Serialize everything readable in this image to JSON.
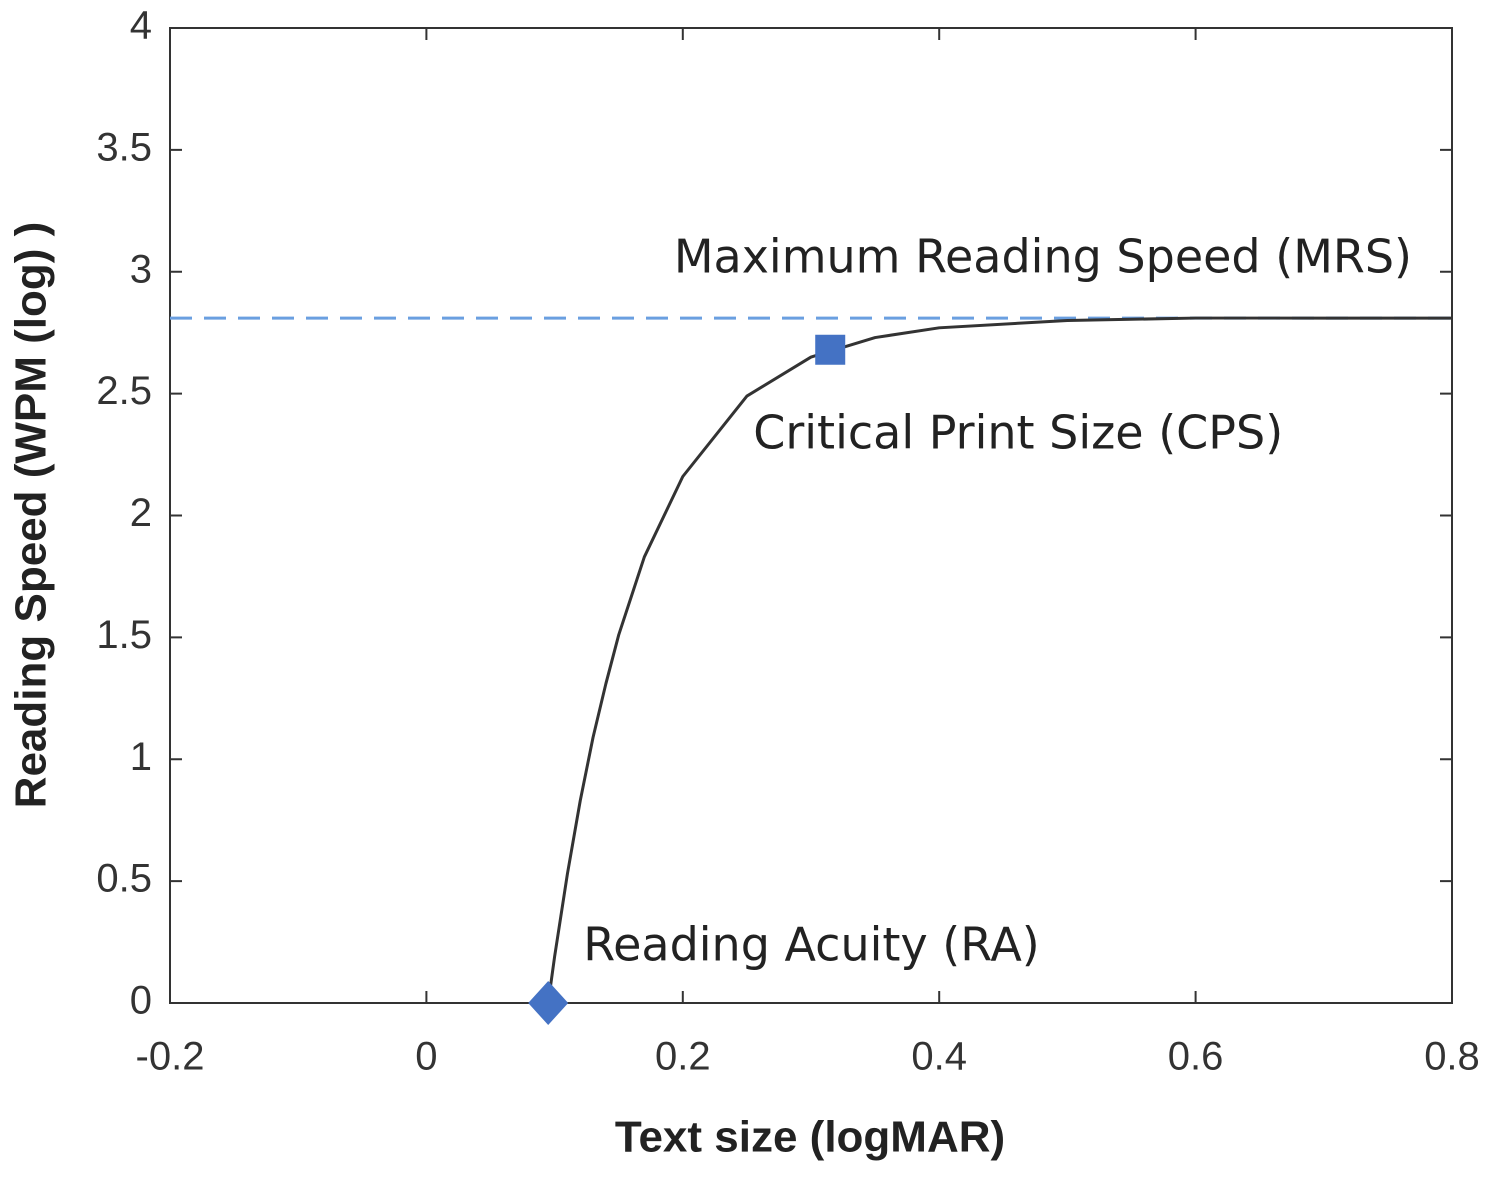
{
  "chart_data": {
    "type": "line",
    "x_label": "Text size (logMAR)",
    "y_label": "Reading Speed (WPM (log) )",
    "xlim": [
      -0.2,
      0.8
    ],
    "xticks": [
      -0.2,
      0,
      0.2,
      0.4,
      0.6,
      0.8
    ],
    "ylim": [
      0,
      4
    ],
    "yticks": [
      0,
      0.5,
      1,
      1.5,
      2,
      2.5,
      3,
      3.5,
      4
    ],
    "grid": false,
    "series": [
      {
        "color": "#333333",
        "x": [
          0.095,
          0.1,
          0.11,
          0.12,
          0.13,
          0.14,
          0.15,
          0.17,
          0.2,
          0.25,
          0.3,
          0.35,
          0.4,
          0.5,
          0.6,
          0.7,
          0.8
        ],
        "values": [
          0,
          0.19,
          0.53,
          0.83,
          1.09,
          1.31,
          1.51,
          1.83,
          2.16,
          2.49,
          2.65,
          2.73,
          2.77,
          2.8,
          2.81,
          2.81,
          2.81
        ]
      }
    ],
    "points": [
      {
        "label": "Reading Acuity (RA)",
        "x": 0.095,
        "y": 0,
        "marker": "diamond",
        "color": "#4472c4"
      },
      {
        "label": "Critical Print Size (CPS)",
        "x": 0.315,
        "y": 2.68,
        "marker": "square",
        "color": "#4472c4"
      }
    ],
    "reference_line": {
      "label": "Maximum Reading Speed (MRS)",
      "y": 2.81,
      "color": "#6a9fe0",
      "dashed": true
    }
  }
}
